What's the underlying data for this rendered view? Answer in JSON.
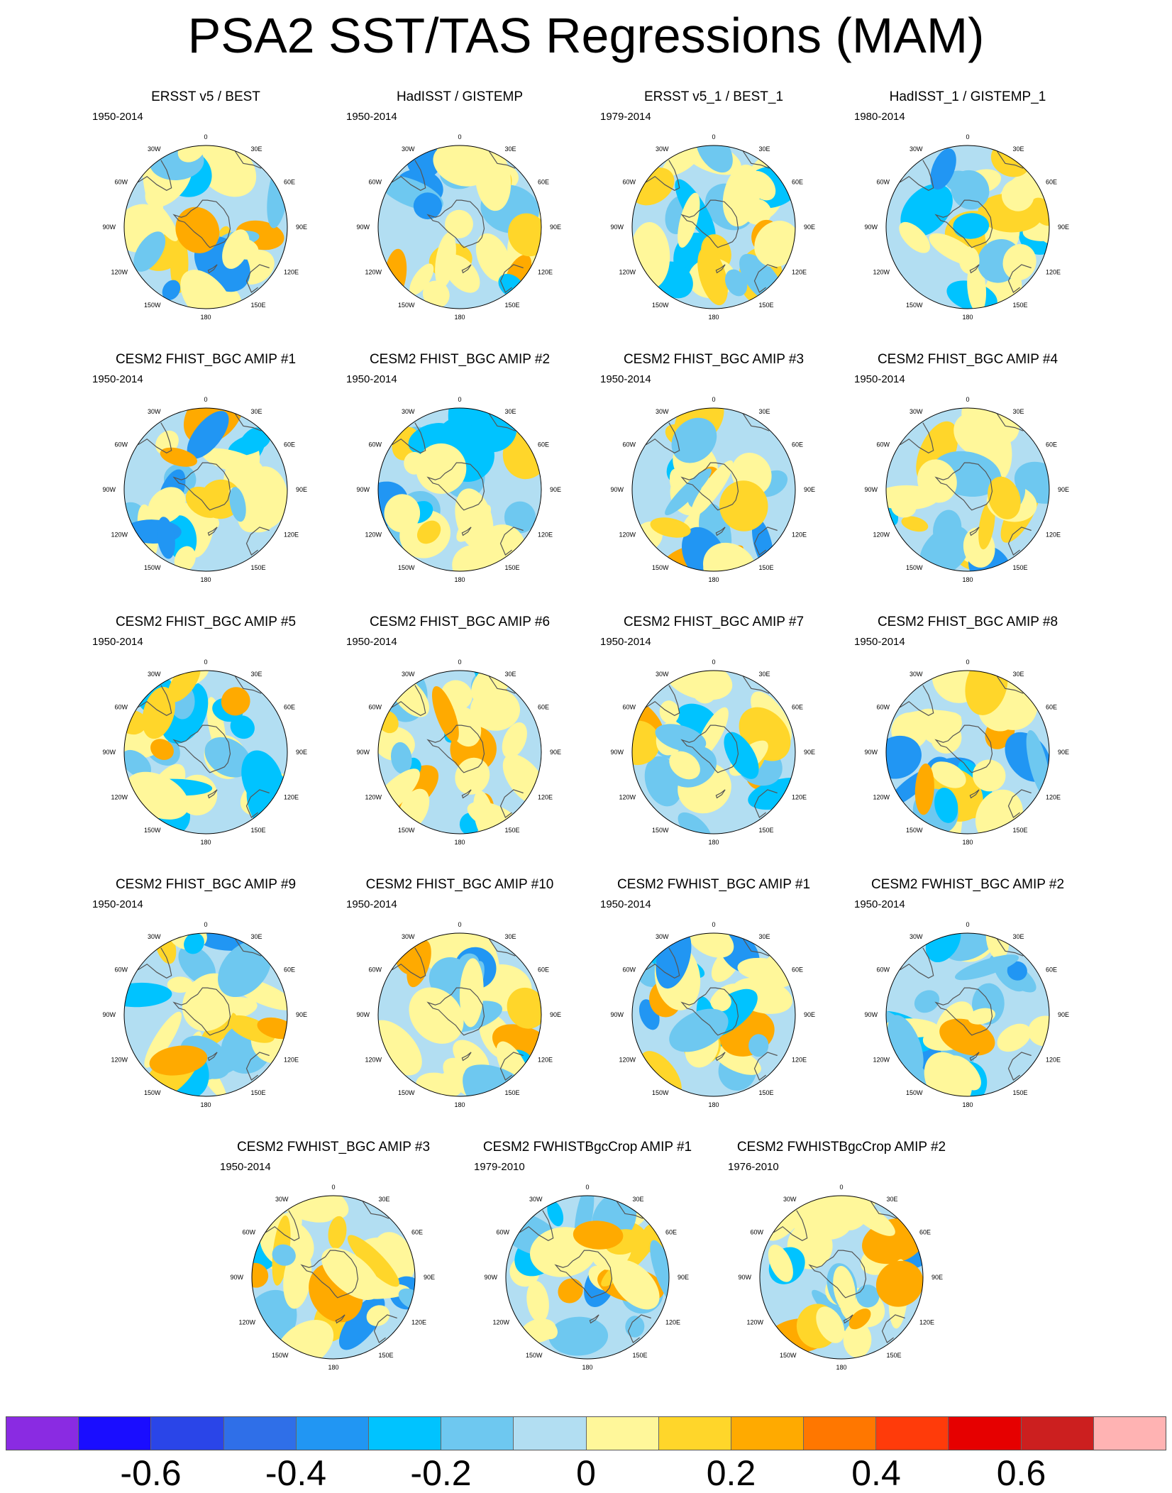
{
  "title": "PSA2 SST/TAS Regressions (MAM)",
  "lon_labels": [
    "0",
    "30E",
    "60E",
    "90E",
    "120E",
    "150E",
    "180",
    "150W",
    "120W",
    "90W",
    "60W",
    "30W"
  ],
  "panels": [
    {
      "title": "ERSST v5 / BEST",
      "period": "1950-2014"
    },
    {
      "title": "HadISST / GISTEMP",
      "period": "1950-2014"
    },
    {
      "title": "ERSST v5_1 / BEST_1",
      "period": "1979-2014"
    },
    {
      "title": "HadISST_1 / GISTEMP_1",
      "period": "1980-2014"
    },
    {
      "title": "CESM2 FHIST_BGC AMIP #1",
      "period": "1950-2014"
    },
    {
      "title": "CESM2 FHIST_BGC AMIP #2",
      "period": "1950-2014"
    },
    {
      "title": "CESM2 FHIST_BGC AMIP #3",
      "period": "1950-2014"
    },
    {
      "title": "CESM2 FHIST_BGC AMIP #4",
      "period": "1950-2014"
    },
    {
      "title": "CESM2 FHIST_BGC AMIP #5",
      "period": "1950-2014"
    },
    {
      "title": "CESM2 FHIST_BGC AMIP #6",
      "period": "1950-2014"
    },
    {
      "title": "CESM2 FHIST_BGC AMIP #7",
      "period": "1950-2014"
    },
    {
      "title": "CESM2 FHIST_BGC AMIP #8",
      "period": "1950-2014"
    },
    {
      "title": "CESM2 FHIST_BGC AMIP #9",
      "period": "1950-2014"
    },
    {
      "title": "CESM2 FHIST_BGC AMIP #10",
      "period": "1950-2014"
    },
    {
      "title": "CESM2 FWHIST_BGC AMIP #1",
      "period": "1950-2014"
    },
    {
      "title": "CESM2 FWHIST_BGC AMIP #2",
      "period": "1950-2014"
    },
    {
      "title": "CESM2 FWHIST_BGC AMIP #3",
      "period": "1950-2014"
    },
    {
      "title": "CESM2 FWHISTBgcCrop AMIP #1",
      "period": "1979-2010"
    },
    {
      "title": "CESM2 FWHISTBgcCrop AMIP #2",
      "period": "1976-2010"
    }
  ],
  "colorbar": {
    "colors": [
      "#8a2be2",
      "#1a0dff",
      "#2a45e8",
      "#2f6fe8",
      "#2196f3",
      "#00c3ff",
      "#6ec8f0",
      "#b2def2",
      "#fff79a",
      "#ffd62a",
      "#ffaa00",
      "#ff7700",
      "#ff3b0a",
      "#e60000",
      "#cc1f1f",
      "#ffb3b3"
    ],
    "tick_labels": [
      "-0.6",
      "-0.4",
      "-0.2",
      "0",
      "0.2",
      "0.4",
      "0.6"
    ],
    "tick_values": [
      -0.6,
      -0.4,
      -0.2,
      0,
      0.2,
      0.4,
      0.6
    ],
    "range": [
      -0.8,
      0.8
    ]
  }
}
